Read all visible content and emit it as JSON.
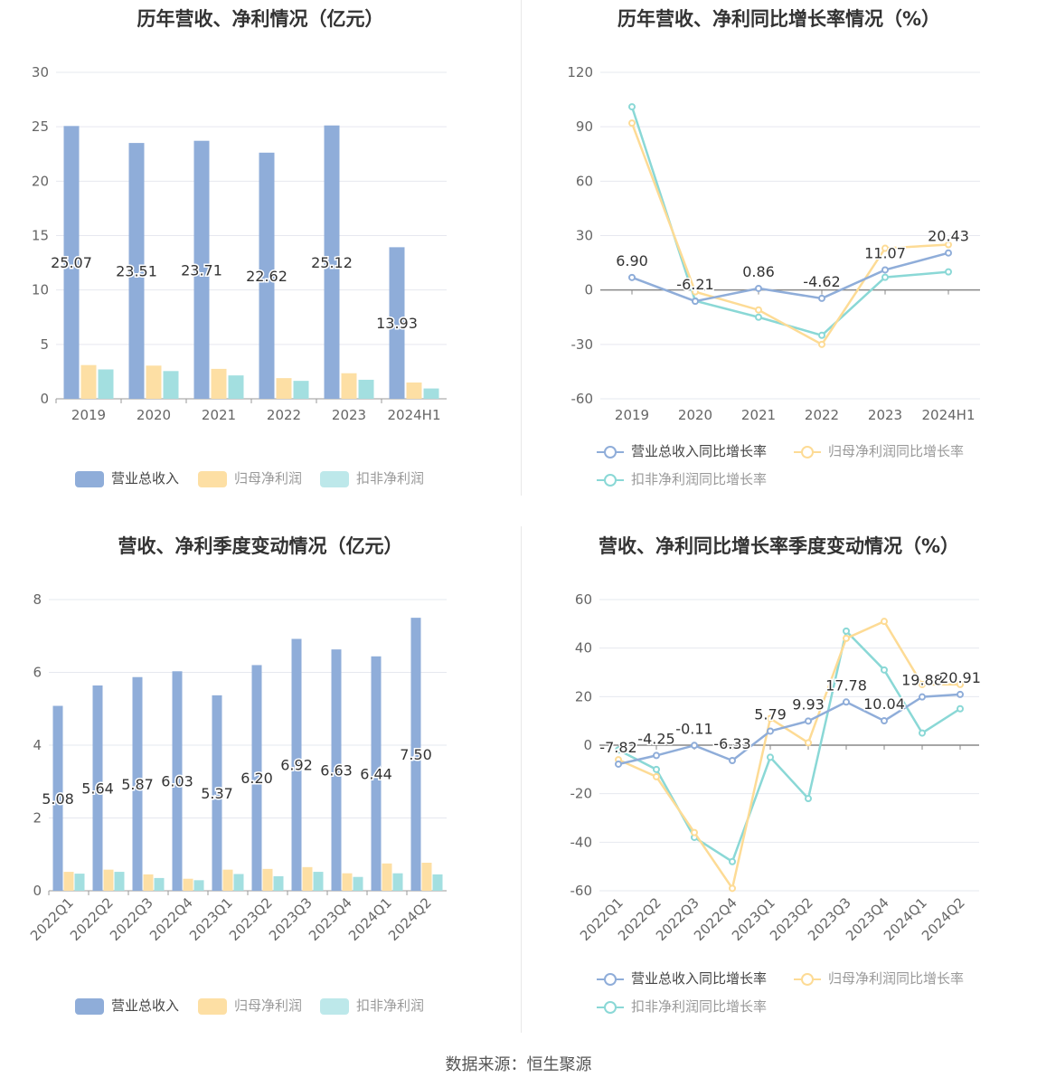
{
  "colors": {
    "revenue": "#8fadd9",
    "net_profit": "#fddfa4",
    "deducted_profit": "#a3dfe0"
  },
  "line_colors": {
    "revenue": "#8fadd9",
    "net_profit": "#fddb95",
    "deducted_profit": "#8ad8d6"
  },
  "source": "数据来源：恒生聚源",
  "legend_bar": [
    "营业总收入",
    "归母净利润",
    "扣非净利润"
  ],
  "legend_line": [
    "营业总收入同比增长率",
    "归母净利润同比增长率",
    "扣非净利润同比增长率"
  ],
  "chart_data": [
    {
      "type": "bar",
      "title": "历年营收、净利情况（亿元）",
      "categories": [
        "2019",
        "2020",
        "2021",
        "2022",
        "2023",
        "2024H1"
      ],
      "ylim": [
        0,
        30
      ],
      "yticks": [
        0,
        5,
        10,
        15,
        20,
        25,
        30
      ],
      "series": [
        {
          "name": "营业总收入",
          "values": [
            25.07,
            23.51,
            23.71,
            22.62,
            25.12,
            13.93
          ],
          "labels": [
            "25.07",
            "23.51",
            "23.71",
            "22.62",
            "25.12",
            "13.93"
          ]
        },
        {
          "name": "归母净利润",
          "values": [
            3.1,
            3.05,
            2.75,
            1.9,
            2.35,
            1.5
          ]
        },
        {
          "name": "扣非净利润",
          "values": [
            2.7,
            2.55,
            2.15,
            1.65,
            1.75,
            0.95
          ]
        }
      ]
    },
    {
      "type": "line",
      "title": "历年营收、净利同比增长率情况（%）",
      "categories": [
        "2019",
        "2020",
        "2021",
        "2022",
        "2023",
        "2024H1"
      ],
      "ylim": [
        -60,
        120
      ],
      "yticks": [
        -60,
        -30,
        0,
        30,
        60,
        90,
        120
      ],
      "series": [
        {
          "name": "营业总收入同比增长率",
          "values": [
            6.9,
            -6.21,
            0.86,
            -4.62,
            11.07,
            20.43
          ],
          "labels": [
            "6.90",
            "-6.21",
            "0.86",
            "-4.62",
            "11.07",
            "20.43"
          ]
        },
        {
          "name": "归母净利润同比增长率",
          "values": [
            92,
            -1,
            -11,
            -30,
            23,
            25
          ]
        },
        {
          "name": "扣非净利润同比增长率",
          "values": [
            101,
            -6,
            -15,
            -25,
            7,
            10
          ]
        }
      ]
    },
    {
      "type": "bar",
      "title": "营收、净利季度变动情况（亿元）",
      "categories": [
        "2022Q1",
        "2022Q2",
        "2022Q3",
        "2022Q4",
        "2023Q1",
        "2023Q2",
        "2023Q3",
        "2023Q4",
        "2024Q1",
        "2024Q2"
      ],
      "ylim": [
        0,
        8
      ],
      "yticks": [
        0,
        2,
        4,
        6,
        8
      ],
      "series": [
        {
          "name": "营业总收入",
          "values": [
            5.08,
            5.64,
            5.87,
            6.03,
            5.37,
            6.2,
            6.92,
            6.63,
            6.44,
            7.5
          ],
          "labels": [
            "5.08",
            "5.64",
            "5.87",
            "6.03",
            "5.37",
            "6.20",
            "6.92",
            "6.63",
            "6.44",
            "7.50"
          ]
        },
        {
          "name": "归母净利润",
          "values": [
            0.52,
            0.58,
            0.45,
            0.33,
            0.58,
            0.6,
            0.65,
            0.48,
            0.75,
            0.77
          ]
        },
        {
          "name": "扣非净利润",
          "values": [
            0.47,
            0.52,
            0.35,
            0.29,
            0.46,
            0.4,
            0.52,
            0.38,
            0.48,
            0.45
          ]
        }
      ]
    },
    {
      "type": "line",
      "title": "营收、净利同比增长率季度变动情况（%）",
      "categories": [
        "2022Q1",
        "2022Q2",
        "2022Q3",
        "2022Q4",
        "2023Q1",
        "2023Q2",
        "2023Q3",
        "2023Q4",
        "2024Q1",
        "2024Q2"
      ],
      "ylim": [
        -60,
        60
      ],
      "yticks": [
        -60,
        -40,
        -20,
        0,
        20,
        40,
        60
      ],
      "series": [
        {
          "name": "营业总收入同比增长率",
          "values": [
            -7.82,
            -4.25,
            -0.11,
            -6.33,
            5.79,
            9.93,
            17.78,
            10.04,
            19.88,
            20.91
          ],
          "labels": [
            "-7.82",
            "-4.25",
            "-0.11",
            "-6.33",
            "5.79",
            "9.93",
            "17.78",
            "10.04",
            "19.88",
            "20.91"
          ]
        },
        {
          "name": "归母净利润同比增长率",
          "values": [
            -6,
            -13,
            -36,
            -59,
            11,
            1,
            44,
            51,
            25,
            25
          ]
        },
        {
          "name": "扣非净利润同比增长率",
          "values": [
            -2,
            -10,
            -38,
            -48,
            -5,
            -22,
            47,
            31,
            5,
            15
          ]
        }
      ]
    }
  ]
}
